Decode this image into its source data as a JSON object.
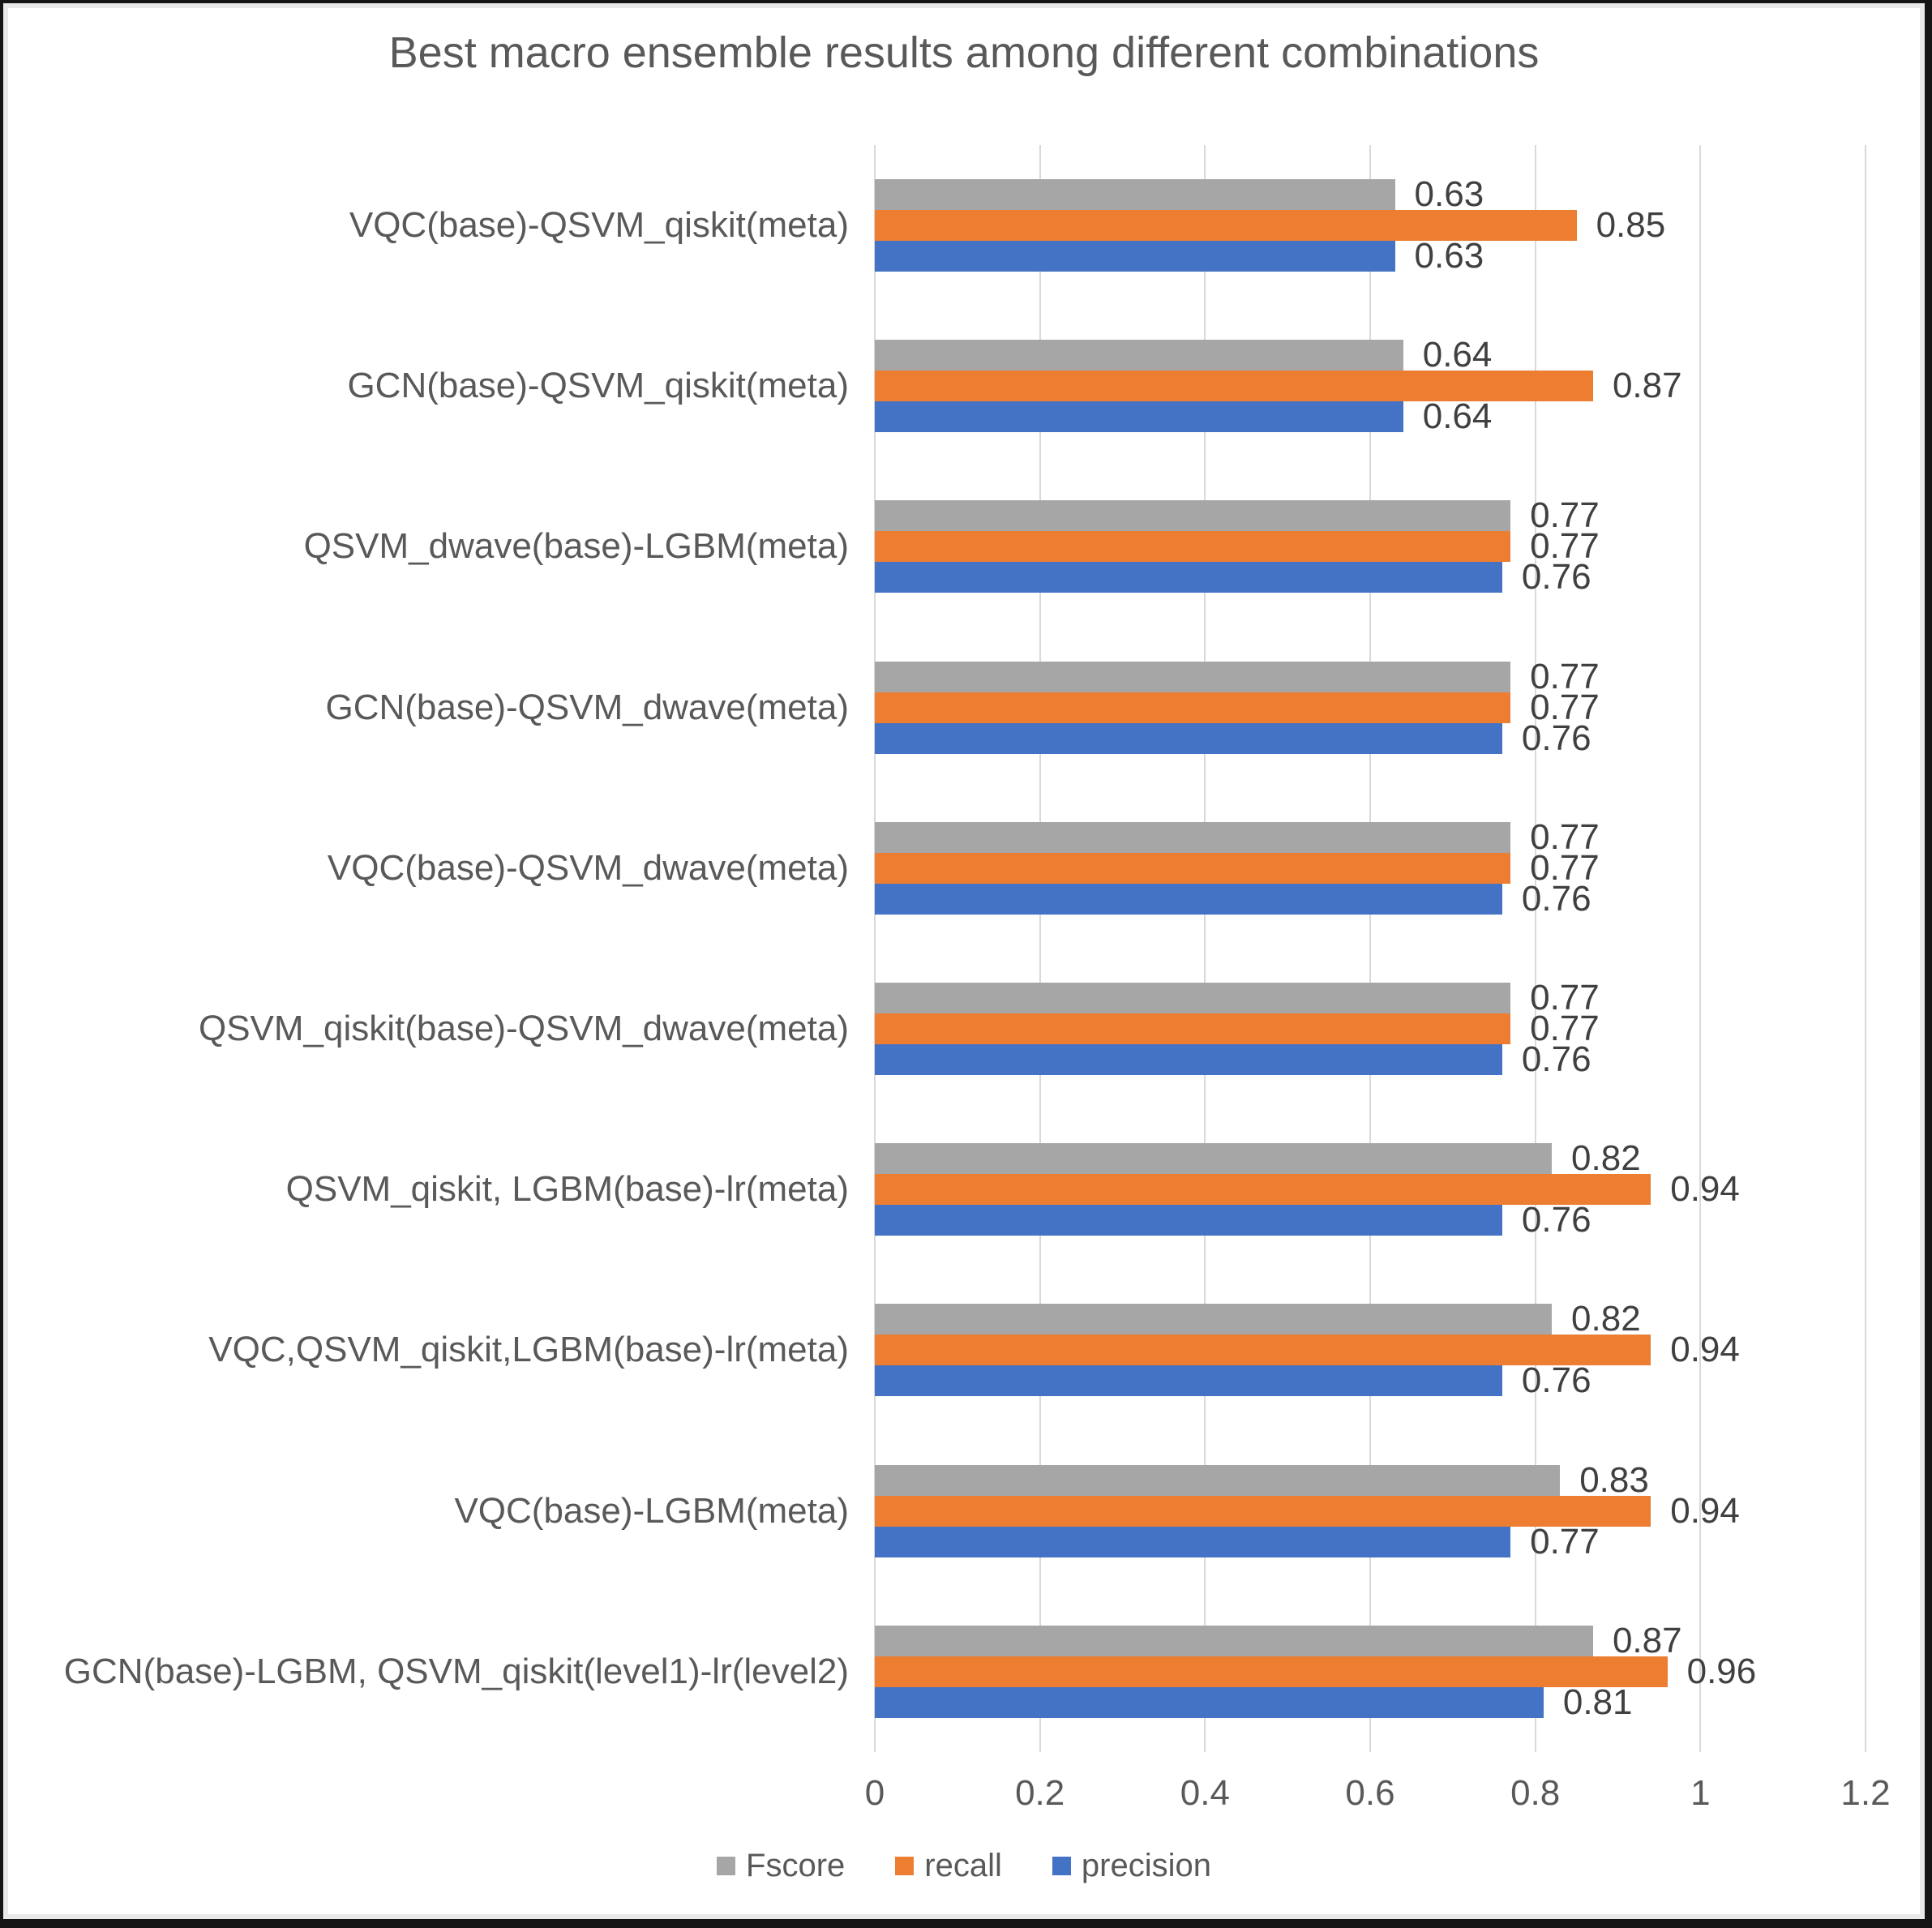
{
  "chart_data": {
    "type": "bar",
    "orientation": "horizontal",
    "title": "Best macro ensemble results among different combinations",
    "categories": [
      "VQC(base)-QSVM_qiskit(meta)",
      "GCN(base)-QSVM_qiskit(meta)",
      "QSVM_dwave(base)-LGBM(meta)",
      "GCN(base)-QSVM_dwave(meta)",
      "VQC(base)-QSVM_dwave(meta)",
      "QSVM_qiskit(base)-QSVM_dwave(meta)",
      "QSVM_qiskit, LGBM(base)-lr(meta)",
      "VQC,QSVM_qiskit,LGBM(base)-lr(meta)",
      "VQC(base)-LGBM(meta)",
      "GCN(base)-LGBM, QSVM_qiskit(level1)-lr(level2)"
    ],
    "series": [
      {
        "name": "Fscore",
        "color": "#a6a6a6",
        "values": [
          0.63,
          0.64,
          0.77,
          0.77,
          0.77,
          0.77,
          0.82,
          0.82,
          0.83,
          0.87
        ]
      },
      {
        "name": "recall",
        "color": "#ed7d31",
        "values": [
          0.85,
          0.87,
          0.77,
          0.77,
          0.77,
          0.77,
          0.94,
          0.94,
          0.94,
          0.96
        ]
      },
      {
        "name": "precision",
        "color": "#4472c4",
        "values": [
          0.63,
          0.64,
          0.76,
          0.76,
          0.76,
          0.76,
          0.76,
          0.76,
          0.77,
          0.81
        ]
      }
    ],
    "xlim": [
      0,
      1.2
    ],
    "x_ticks": [
      "0",
      "0.2",
      "0.4",
      "0.6",
      "0.8",
      "1",
      "1.2"
    ],
    "x_tick_values": [
      0,
      0.2,
      0.4,
      0.6,
      0.8,
      1,
      1.2
    ],
    "grid": "vertical-only",
    "legend_position": "bottom-center",
    "value_labels": "outside-end, 2 decimals",
    "text_color": "#595959",
    "value_label_color": "#404040",
    "gridline_color": "#d9d9d9"
  }
}
